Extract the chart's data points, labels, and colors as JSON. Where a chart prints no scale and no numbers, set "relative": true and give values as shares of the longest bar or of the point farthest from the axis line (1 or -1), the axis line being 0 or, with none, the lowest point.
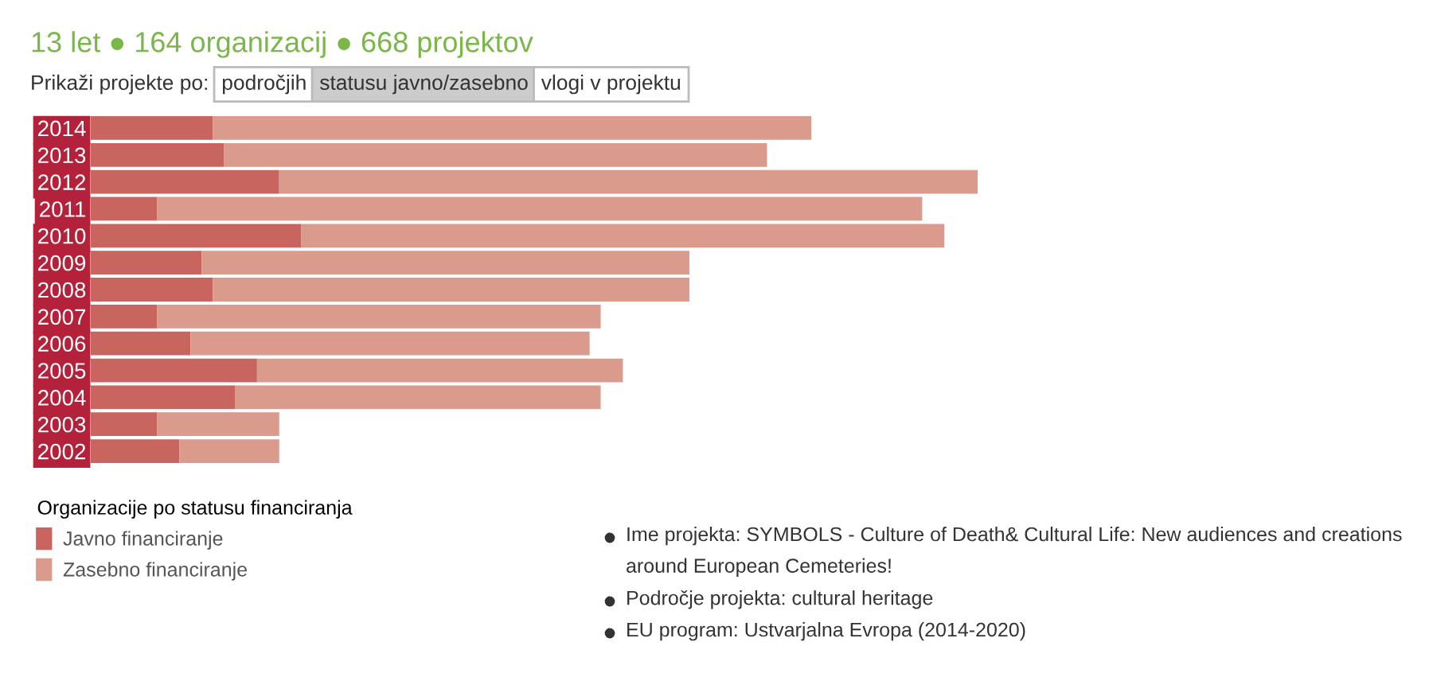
{
  "chart_data": {
    "type": "bar",
    "orientation": "horizontal",
    "stacked": true,
    "relative": true,
    "title": "13 let ● 164 organizacij ● 668 projektov",
    "categories": [
      "2014",
      "2013",
      "2012",
      "2011",
      "2010",
      "2009",
      "2008",
      "2007",
      "2006",
      "2005",
      "2004",
      "2003",
      "2002"
    ],
    "series": [
      {
        "name": "Javno financiranje",
        "color": "#c9655f",
        "values": [
          0.1375,
          0.15,
          0.2125,
          0.075,
          0.2375,
          0.125,
          0.1375,
          0.075,
          0.1125,
          0.1875,
          0.1625,
          0.075,
          0.1
        ]
      },
      {
        "name": "Zasebno financiranje",
        "color": "#da9a8c",
        "values": [
          0.675,
          0.6125,
          0.7875,
          0.8625,
          0.725,
          0.55,
          0.5375,
          0.5,
          0.45,
          0.4125,
          0.4125,
          0.1375,
          0.1125
        ]
      }
    ],
    "legend": "bottom",
    "legend_title": "Organizacije po statusu financiranja",
    "grid": false,
    "annotations": [
      "Prikaži projekte po:",
      "področjih",
      "statusu javno/zasebno",
      "vlogi v projektu",
      "Ime projekta: SYMBOLS - Culture of Death& Cultural Life: New audiences and creations around European Cemeteries!",
      "Področje projekta: cultural heritage",
      "EU program: Ustvarjalna Evropa (2014-2020)"
    ]
  }
}
